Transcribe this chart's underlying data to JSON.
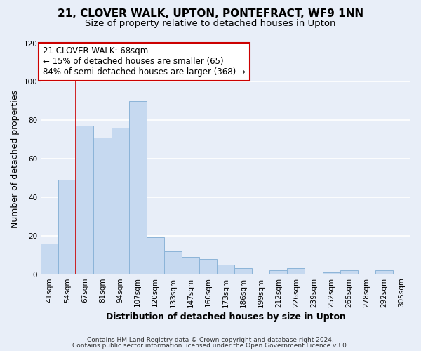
{
  "title1": "21, CLOVER WALK, UPTON, PONTEFRACT, WF9 1NN",
  "title2": "Size of property relative to detached houses in Upton",
  "xlabel": "Distribution of detached houses by size in Upton",
  "ylabel": "Number of detached properties",
  "bar_labels": [
    "41sqm",
    "54sqm",
    "67sqm",
    "81sqm",
    "94sqm",
    "107sqm",
    "120sqm",
    "133sqm",
    "147sqm",
    "160sqm",
    "173sqm",
    "186sqm",
    "199sqm",
    "212sqm",
    "226sqm",
    "239sqm",
    "252sqm",
    "265sqm",
    "278sqm",
    "292sqm",
    "305sqm"
  ],
  "bar_values": [
    16,
    49,
    77,
    71,
    76,
    90,
    19,
    12,
    9,
    8,
    5,
    3,
    0,
    2,
    3,
    0,
    1,
    2,
    0,
    2,
    0
  ],
  "bar_color": "#c6d9f0",
  "bar_edge_color": "#8cb4d8",
  "vline_x_index": 2,
  "vline_color": "#cc0000",
  "annotation_box_color": "#cc0000",
  "annotation_line1": "21 CLOVER WALK: 68sqm",
  "annotation_line2": "← 15% of detached houses are smaller (65)",
  "annotation_line3": "84% of semi-detached houses are larger (368) →",
  "ylim": [
    0,
    120
  ],
  "yticks": [
    0,
    20,
    40,
    60,
    80,
    100,
    120
  ],
  "footer1": "Contains HM Land Registry data © Crown copyright and database right 2024.",
  "footer2": "Contains public sector information licensed under the Open Government Licence v3.0.",
  "background_color": "#e8eef8",
  "plot_bg_color": "#e8eef8",
  "grid_color": "#ffffff",
  "title1_fontsize": 11,
  "title2_fontsize": 9.5,
  "axis_label_fontsize": 9,
  "tick_fontsize": 7.5,
  "annotation_fontsize": 8.5,
  "footer_fontsize": 6.5
}
